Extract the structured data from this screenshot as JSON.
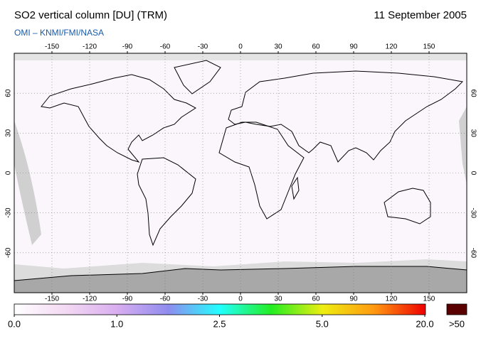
{
  "header": {
    "title": "SO2 vertical column [DU] (TRM)",
    "date": "11 September 2005",
    "subtitle": "OMI  –  KNMI/FMI/NASA"
  },
  "map": {
    "xlim": [
      -180,
      180
    ],
    "ylim": [
      -90,
      90
    ],
    "lon_ticks": [
      -150,
      -120,
      -90,
      -60,
      -30,
      0,
      30,
      60,
      90,
      120,
      150
    ],
    "lat_ticks": [
      60,
      30,
      0,
      -30,
      -60
    ],
    "grid": true
  },
  "colorbar": {
    "colors": [
      "#ffffff",
      "#f3d9f3",
      "#d9aef0",
      "#8f8cef",
      "#22ffff",
      "#22ee22",
      "#eeee11",
      "#ff9911",
      "#ee0000"
    ],
    "overflow_color": "#5a0000",
    "ticks": [
      {
        "value": 0,
        "label": "0.0"
      },
      {
        "value": 1,
        "label": "1.0"
      },
      {
        "value": 2.5,
        "label": "2.5"
      },
      {
        "value": 5,
        "label": "5.0"
      },
      {
        "value": 20,
        "label": "20.0"
      }
    ],
    "overflow": {
      "value": 50,
      "label": ">50"
    }
  }
}
